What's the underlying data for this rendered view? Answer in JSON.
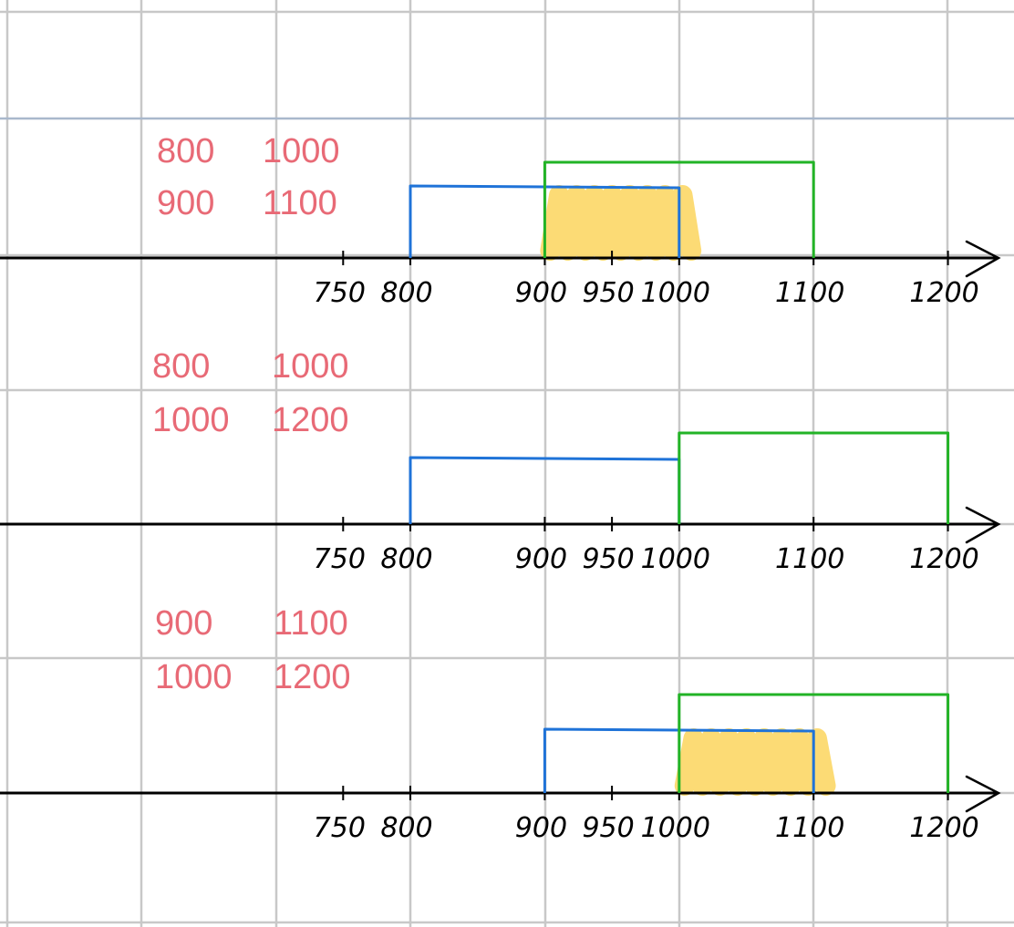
{
  "colors": {
    "grid": "#c8c8c8",
    "grid_accent": "#a9b8cc",
    "axis": "#000000",
    "label": "#e86a76",
    "interval_a": "#1f73d8",
    "interval_b": "#22b326",
    "overlap": "#fcd96e"
  },
  "icons": {
    "axis_arrow": "arrow-right-icon",
    "overlap_scribble": "highlight-scribble-icon"
  },
  "axis_ticks": [
    "750",
    "800",
    "900",
    "950",
    "1000",
    "1100",
    "1200"
  ],
  "panels": [
    {
      "pairs": [
        [
          "800",
          "1000"
        ],
        [
          "900",
          "1100"
        ]
      ],
      "interval_a": [
        800,
        1000
      ],
      "interval_b": [
        900,
        1100
      ],
      "overlap": [
        900,
        1000
      ]
    },
    {
      "pairs": [
        [
          "800",
          "1000"
        ],
        [
          "1000",
          "1200"
        ]
      ],
      "interval_a": [
        800,
        1000
      ],
      "interval_b": [
        1000,
        1200
      ],
      "overlap": null
    },
    {
      "pairs": [
        [
          "900",
          "1100"
        ],
        [
          "1000",
          "1200"
        ]
      ],
      "interval_a": [
        900,
        1100
      ],
      "interval_b": [
        1000,
        1200
      ],
      "overlap": [
        1000,
        1100
      ]
    }
  ]
}
